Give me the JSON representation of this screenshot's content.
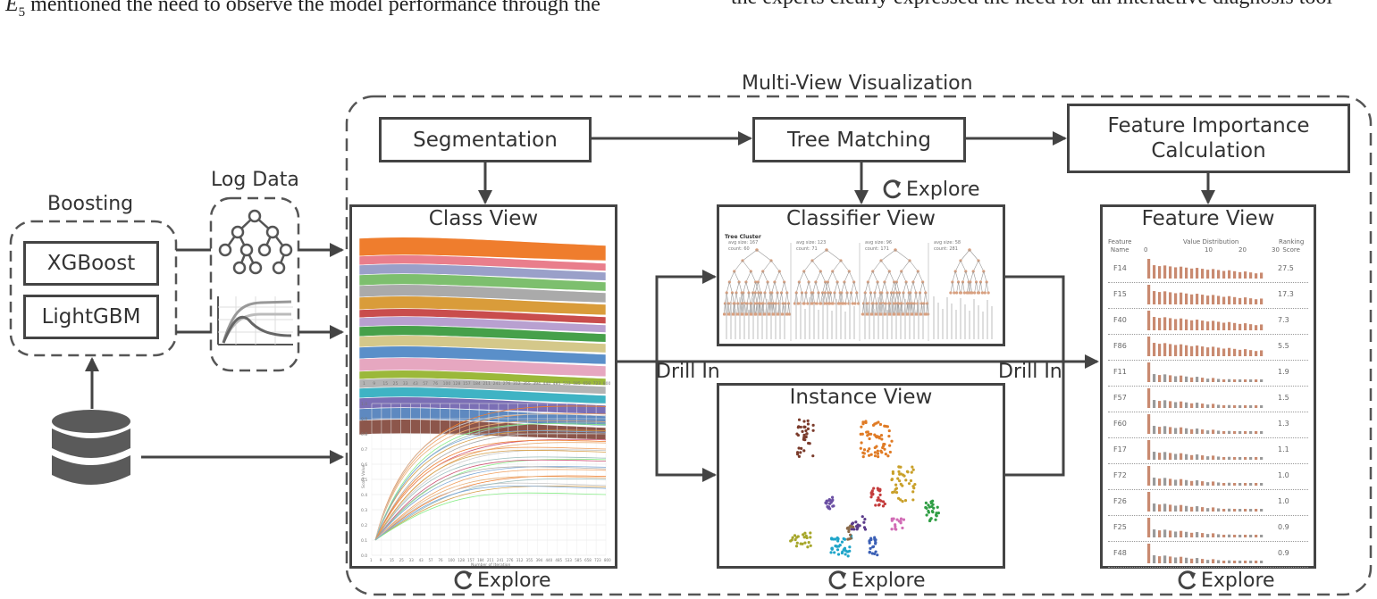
{
  "header_text": {
    "left_prefix": "E",
    "left_sub": "5",
    "left_rest": " mentioned the need to observe the model performance through the",
    "right": "the experts clearly expressed the need for an interactive diagnosis tool"
  },
  "labels": {
    "multi_view": "Multi-View Visualization",
    "boosting": "Boosting",
    "log_data": "Log Data",
    "xgboost": "XGBoost",
    "lightgbm": "LightGBM",
    "segmentation": "Segmentation",
    "tree_matching": "Tree Matching",
    "feature_importance_line1": "Feature Importance",
    "feature_importance_line2": "Calculation",
    "class_view": "Class View",
    "classifier_view": "Classifier View",
    "instance_view": "Instance View",
    "feature_view": "Feature View",
    "drill_in_left": "Drill In",
    "drill_in_right": "Drill In",
    "explore": "Explore"
  },
  "icons": {
    "database": "database-icon",
    "tree": "tree-icon",
    "line_chart": "line-chart-icon",
    "refresh": "refresh-icon"
  },
  "colors": {
    "stroke": "#444444",
    "dash": "#555555",
    "text": "#333333",
    "bar": "#c98a70"
  },
  "classifier_view": {
    "panel_title": "Tree Cluster",
    "clusters": [
      {
        "avg_size": "avg size: 167",
        "count": "count: 60"
      },
      {
        "avg_size": "avg size: 123",
        "count": "count: 71"
      },
      {
        "avg_size": "avg size: 96",
        "count": "count: 171"
      },
      {
        "avg_size": "avg size: 58",
        "count": "count: 281"
      }
    ]
  },
  "class_view": {
    "x_ticks": [
      "1",
      "9",
      "15",
      "25",
      "33",
      "43",
      "57",
      "76",
      "100",
      "128",
      "157",
      "184",
      "211",
      "241",
      "276",
      "312",
      "355",
      "394",
      "440",
      "485",
      "533",
      "585",
      "658",
      "723",
      "800"
    ],
    "y_ticks": [
      "1.0",
      "0.9",
      "0.8",
      "0.7",
      "0.6",
      "0.5",
      "0.4",
      "0.3",
      "0.2",
      "0.1",
      "0.0"
    ],
    "x_label": "Number of Iteration",
    "y_label": "Score Value"
  },
  "feature_view": {
    "col_feature": "Feature",
    "col_feature2": "Name",
    "col_dist": "Value Distribution",
    "col_rank": "Ranking",
    "col_rank2": "Score",
    "axis_ticks": [
      "0",
      "10",
      "20",
      "30"
    ],
    "rows": [
      {
        "name": "F14",
        "score": "27.5"
      },
      {
        "name": "F15",
        "score": "17.3"
      },
      {
        "name": "F40",
        "score": "7.3"
      },
      {
        "name": "F86",
        "score": "5.5"
      },
      {
        "name": "F11",
        "score": "1.9"
      },
      {
        "name": "F57",
        "score": "1.5"
      },
      {
        "name": "F60",
        "score": "1.3"
      },
      {
        "name": "F17",
        "score": "1.1"
      },
      {
        "name": "F72",
        "score": "1.0"
      },
      {
        "name": "F26",
        "score": "1.0"
      },
      {
        "name": "F25",
        "score": "0.9"
      },
      {
        "name": "F48",
        "score": "0.9"
      }
    ]
  }
}
